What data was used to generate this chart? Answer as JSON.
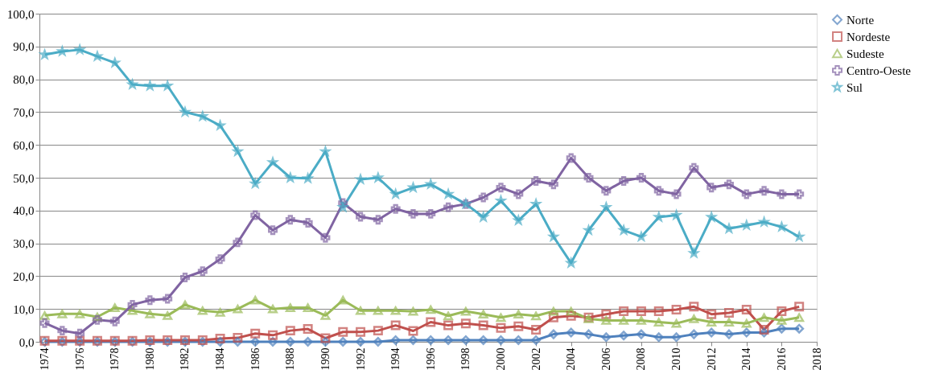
{
  "chart_data": {
    "type": "line",
    "x": [
      1974,
      1975,
      1976,
      1977,
      1978,
      1979,
      1980,
      1981,
      1982,
      1983,
      1984,
      1985,
      1986,
      1987,
      1988,
      1989,
      1990,
      1991,
      1992,
      1993,
      1994,
      1995,
      1996,
      1997,
      1998,
      1999,
      2000,
      2001,
      2002,
      2003,
      2004,
      2005,
      2006,
      2007,
      2008,
      2009,
      2010,
      2011,
      2012,
      2013,
      2014,
      2015,
      2016,
      2017
    ],
    "series": [
      {
        "name": "Norte",
        "color": "#4f81bd",
        "marker": "diamond",
        "values": [
          0,
          0,
          0,
          0,
          0,
          0,
          0,
          0,
          0,
          0,
          0,
          0,
          0,
          0,
          0,
          0,
          0,
          0,
          0,
          0,
          0.5,
          0.5,
          0.5,
          0.5,
          0.5,
          0.5,
          0.5,
          0.5,
          0.5,
          2.3,
          2.8,
          2.3,
          1.4,
          1.9,
          2.3,
          1.4,
          1.4,
          2.3,
          2.8,
          2.3,
          2.8,
          2.8,
          4,
          4
        ]
      },
      {
        "name": "Nordeste",
        "color": "#c0504d",
        "marker": "square",
        "values": [
          0.3,
          0.3,
          0.3,
          0.3,
          0.3,
          0.3,
          0.5,
          0.5,
          0.5,
          0.5,
          1,
          1.2,
          2.5,
          2,
          3.4,
          3.9,
          1.1,
          3,
          3,
          3.4,
          5,
          3.3,
          6,
          5,
          5.6,
          5,
          4.2,
          4.7,
          3.7,
          7.4,
          7.9,
          7.4,
          8.4,
          9.3,
          9.3,
          9.3,
          9.8,
          10.7,
          8.4,
          8.8,
          9.8,
          3.7,
          9.3,
          10.7
        ]
      },
      {
        "name": "Sudeste",
        "color": "#9bbb59",
        "marker": "triangle",
        "values": [
          8,
          8.5,
          8.5,
          7.6,
          10.4,
          9.5,
          8.5,
          8,
          11.3,
          9.5,
          9,
          10,
          12.7,
          10,
          10.4,
          10.4,
          8,
          12.7,
          9.5,
          9.5,
          9.5,
          9.3,
          9.8,
          7.9,
          9.3,
          8.4,
          7.4,
          8.4,
          7.9,
          9.3,
          9.3,
          7,
          6.5,
          6.5,
          6.5,
          6,
          5.6,
          7,
          6,
          6,
          5.6,
          7.4,
          6.5,
          7.4
        ]
      },
      {
        "name": "Centro-Oeste",
        "color": "#8064a2",
        "marker": "cross",
        "values": [
          5.7,
          3.4,
          2.5,
          6.7,
          6.2,
          11.3,
          12.7,
          13.1,
          19.6,
          21.5,
          25.2,
          30.3,
          38.6,
          34,
          37.2,
          36.3,
          31.7,
          42.3,
          38.1,
          37.2,
          40.5,
          39,
          39,
          41,
          42,
          44,
          47,
          45,
          49,
          48,
          56,
          50,
          46,
          49,
          50,
          46,
          45,
          53,
          47,
          48,
          45,
          46,
          45,
          45
        ]
      },
      {
        "name": "Sul",
        "color": "#4bacc6",
        "marker": "star",
        "values": [
          87.5,
          88.5,
          89,
          87,
          85,
          78.4,
          78,
          78,
          70,
          68.7,
          65.9,
          58,
          48.2,
          54.7,
          50,
          49.8,
          58,
          41,
          49.5,
          50,
          45,
          47,
          48,
          45,
          42,
          38,
          43,
          37,
          42,
          32,
          24,
          34,
          41,
          34,
          32,
          38,
          38.6,
          27,
          38,
          34.5,
          35.5,
          36.5,
          35,
          32
        ]
      }
    ],
    "xlim": [
      1973.7,
      2018
    ],
    "xticks": [
      1974,
      1976,
      1978,
      1980,
      1982,
      1984,
      1986,
      1988,
      1990,
      1992,
      1994,
      1996,
      1998,
      2000,
      2002,
      2004,
      2006,
      2008,
      2010,
      2012,
      2014,
      2016,
      2018
    ],
    "ylim": [
      0,
      100
    ],
    "yticks": [
      {
        "value": 0,
        "label": "0,0"
      },
      {
        "value": 10,
        "label": "10,0"
      },
      {
        "value": 20,
        "label": "20,0"
      },
      {
        "value": 30,
        "label": "30,0"
      },
      {
        "value": 40,
        "label": "40,0"
      },
      {
        "value": 50,
        "label": "50,0"
      },
      {
        "value": 60,
        "label": "60,0"
      },
      {
        "value": 70,
        "label": "70,0"
      },
      {
        "value": 80,
        "label": "80,0"
      },
      {
        "value": 90,
        "label": "90,0"
      },
      {
        "value": 100,
        "label": "100,0"
      }
    ],
    "grid": "y",
    "legend": "right",
    "line_style": "solid"
  }
}
